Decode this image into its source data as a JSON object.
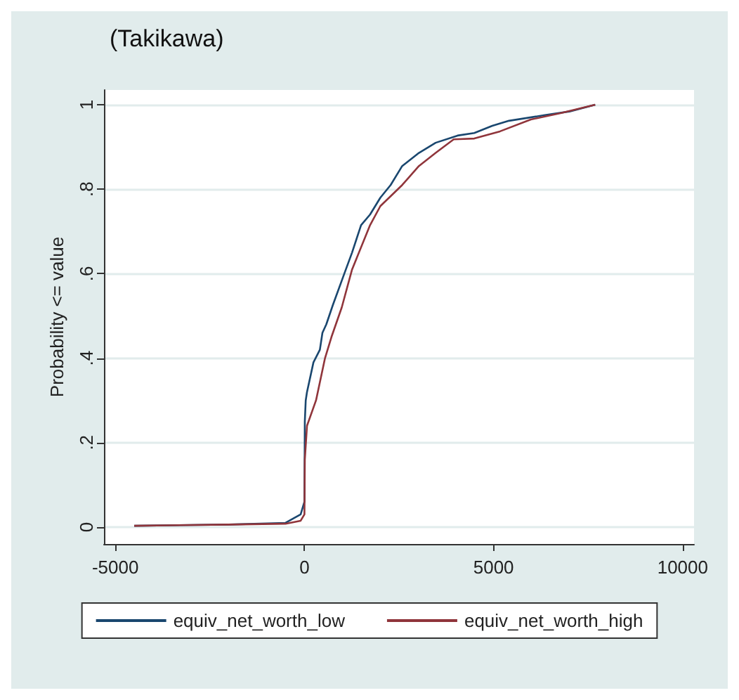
{
  "chart_data": {
    "type": "line",
    "title": "(Takikawa)",
    "ylabel": "Probability <= value",
    "xlim": [
      -5300,
      10300
    ],
    "xticks": [
      -5000,
      0,
      5000,
      10000
    ],
    "ylim": [
      -0.04,
      1.035
    ],
    "yticks": [
      {
        "value": 0,
        "label": "0"
      },
      {
        "value": 0.2,
        "label": ".2"
      },
      {
        "value": 0.4,
        "label": ".4"
      },
      {
        "value": 0.6,
        "label": ".6"
      },
      {
        "value": 0.8,
        "label": ".8"
      },
      {
        "value": 1,
        "label": "1"
      }
    ],
    "grid": "y",
    "legend": "bottom",
    "marker": "none",
    "line_style": "solid",
    "series": [
      {
        "name": "equiv_net_worth_low",
        "color": "#1a476f",
        "x": [
          -4500,
          -2000,
          -500,
          -100,
          0,
          10,
          34,
          68,
          238,
          408,
          476,
          578,
          748,
          1054,
          1259,
          1497,
          1735,
          2007,
          2279,
          2585,
          3027,
          3469,
          4048,
          4490,
          4966,
          5408,
          6327,
          7007,
          7687
        ],
        "values": [
          0.003,
          0.006,
          0.01,
          0.03,
          0.06,
          0.25,
          0.3,
          0.32,
          0.39,
          0.42,
          0.46,
          0.48,
          0.525,
          0.6,
          0.65,
          0.715,
          0.74,
          0.78,
          0.81,
          0.855,
          0.886,
          0.91,
          0.927,
          0.933,
          0.95,
          0.962,
          0.975,
          0.984,
          1.0
        ]
      },
      {
        "name": "equiv_net_worth_high",
        "color": "#90353b",
        "x": [
          -4500,
          -2000,
          -500,
          -100,
          0,
          10,
          68,
          306,
          544,
          714,
          986,
          1259,
          1735,
          2007,
          2585,
          3027,
          3469,
          3946,
          4490,
          5170,
          5986,
          6769,
          7687
        ],
        "values": [
          0.003,
          0.006,
          0.008,
          0.015,
          0.03,
          0.16,
          0.24,
          0.3,
          0.4,
          0.45,
          0.52,
          0.61,
          0.715,
          0.76,
          0.81,
          0.855,
          0.886,
          0.918,
          0.92,
          0.937,
          0.965,
          0.98,
          1.0
        ]
      }
    ]
  }
}
